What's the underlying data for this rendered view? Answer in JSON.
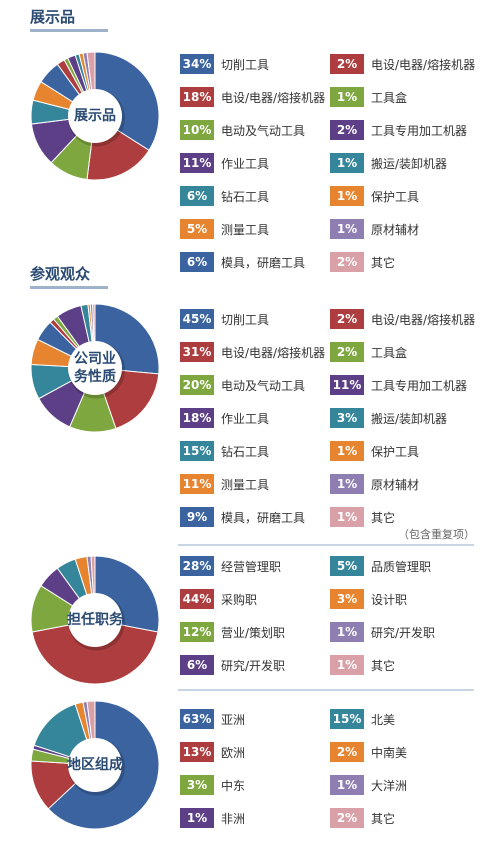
{
  "colors": {
    "blue": "#3a63a0",
    "red": "#ad3d3f",
    "green": "#7ea73f",
    "purple": "#5c3f86",
    "teal": "#35859b",
    "orange": "#e7842f",
    "lightpurple": "#8e7eb2",
    "pink": "#d9a0a8",
    "skyblue": "#3a9fc8",
    "lightorange": "#f0a95e",
    "lightgreen": "#a7c36a",
    "tan": "#c8a06e"
  },
  "sections": {
    "exhibits": {
      "title": "展示品"
    },
    "visitors": {
      "title": "参观观众"
    }
  },
  "note": "（包含重复项）",
  "chart_data": [
    {
      "type": "pie",
      "title": "展示品",
      "center_label": "展示品",
      "slices": [
        {
          "label": "切削工具",
          "value": 34,
          "display": "34%",
          "color": "#3a63a0"
        },
        {
          "label": "电设/电器/熔接机器",
          "value": 18,
          "display": "18%",
          "color": "#ad3d3f"
        },
        {
          "label": "电动及气动工具",
          "value": 10,
          "display": "10%",
          "color": "#7ea73f"
        },
        {
          "label": "作业工具",
          "value": 11,
          "display": "11%",
          "color": "#5c3f86"
        },
        {
          "label": "钻石工具",
          "value": 6,
          "display": "6%",
          "color": "#35859b"
        },
        {
          "label": "测量工具",
          "value": 5,
          "display": "5%",
          "color": "#e7842f"
        },
        {
          "label": "模具，研磨工具",
          "value": 6,
          "display": "6%",
          "color": "#3a63a0"
        },
        {
          "label": "电设/电器/熔接机器",
          "value": 2,
          "display": "2%",
          "color": "#ad3d3f"
        },
        {
          "label": "工具盒",
          "value": 1,
          "display": "1%",
          "color": "#7ea73f"
        },
        {
          "label": "工具专用加工机器",
          "value": 2,
          "display": "2%",
          "color": "#5c3f86"
        },
        {
          "label": "搬运/装卸机器",
          "value": 1,
          "display": "1%",
          "color": "#35859b"
        },
        {
          "label": "保护工具",
          "value": 1,
          "display": "1%",
          "color": "#e7842f"
        },
        {
          "label": "原材辅材",
          "value": 1,
          "display": "1%",
          "color": "#8e7eb2"
        },
        {
          "label": "其它",
          "value": 2,
          "display": "2%",
          "color": "#d9a0a8"
        }
      ]
    },
    {
      "type": "pie",
      "title": "公司业务性质",
      "center_label": "公司业务性质",
      "slices": [
        {
          "label": "切削工具",
          "value": 45,
          "display": "45%",
          "color": "#3a63a0"
        },
        {
          "label": "电设/电器/熔接机器",
          "value": 31,
          "display": "31%",
          "color": "#ad3d3f"
        },
        {
          "label": "电动及气动工具",
          "value": 20,
          "display": "20%",
          "color": "#7ea73f"
        },
        {
          "label": "作业工具",
          "value": 18,
          "display": "18%",
          "color": "#5c3f86"
        },
        {
          "label": "钻石工具",
          "value": 15,
          "display": "15%",
          "color": "#35859b"
        },
        {
          "label": "测量工具",
          "value": 11,
          "display": "11%",
          "color": "#e7842f"
        },
        {
          "label": "模具，研磨工具",
          "value": 9,
          "display": "9%",
          "color": "#3a63a0"
        },
        {
          "label": "电设/电器/熔接机器",
          "value": 2,
          "display": "2%",
          "color": "#ad3d3f"
        },
        {
          "label": "工具盒",
          "value": 2,
          "display": "2%",
          "color": "#7ea73f"
        },
        {
          "label": "工具专用加工机器",
          "value": 11,
          "display": "11%",
          "color": "#5c3f86"
        },
        {
          "label": "搬运/装卸机器",
          "value": 3,
          "display": "3%",
          "color": "#35859b"
        },
        {
          "label": "保护工具",
          "value": 1,
          "display": "1%",
          "color": "#e7842f"
        },
        {
          "label": "原材辅材",
          "value": 1,
          "display": "1%",
          "color": "#8e7eb2"
        },
        {
          "label": "其它",
          "value": 1,
          "display": "1%",
          "color": "#d9a0a8"
        }
      ]
    },
    {
      "type": "pie",
      "title": "担任职务",
      "center_label": "担任职务",
      "slices": [
        {
          "label": "经营管理职",
          "value": 28,
          "display": "28%",
          "color": "#3a63a0"
        },
        {
          "label": "采购职",
          "value": 44,
          "display": "44%",
          "color": "#ad3d3f"
        },
        {
          "label": "营业/策划职",
          "value": 12,
          "display": "12%",
          "color": "#7ea73f"
        },
        {
          "label": "研究/开发职",
          "value": 6,
          "display": "6%",
          "color": "#5c3f86"
        },
        {
          "label": "品质管理职",
          "value": 5,
          "display": "5%",
          "color": "#35859b"
        },
        {
          "label": "设计职",
          "value": 3,
          "display": "3%",
          "color": "#e7842f"
        },
        {
          "label": "研究/开发职",
          "value": 1,
          "display": "1%",
          "color": "#8e7eb2"
        },
        {
          "label": "其它",
          "value": 1,
          "display": "1%",
          "color": "#d9a0a8"
        }
      ]
    },
    {
      "type": "pie",
      "title": "地区组成",
      "center_label": "地区组成",
      "slices": [
        {
          "label": "亚洲",
          "value": 63,
          "display": "63%",
          "color": "#3a63a0"
        },
        {
          "label": "欧洲",
          "value": 13,
          "display": "13%",
          "color": "#ad3d3f"
        },
        {
          "label": "中东",
          "value": 3,
          "display": "3%",
          "color": "#7ea73f"
        },
        {
          "label": "非洲",
          "value": 1,
          "display": "1%",
          "color": "#5c3f86"
        },
        {
          "label": "北美",
          "value": 15,
          "display": "15%",
          "color": "#35859b"
        },
        {
          "label": "中南美",
          "value": 2,
          "display": "2%",
          "color": "#e7842f"
        },
        {
          "label": "大洋洲",
          "value": 1,
          "display": "1%",
          "color": "#8e7eb2"
        },
        {
          "label": "其它",
          "value": 2,
          "display": "2%",
          "color": "#d9a0a8"
        }
      ]
    }
  ]
}
